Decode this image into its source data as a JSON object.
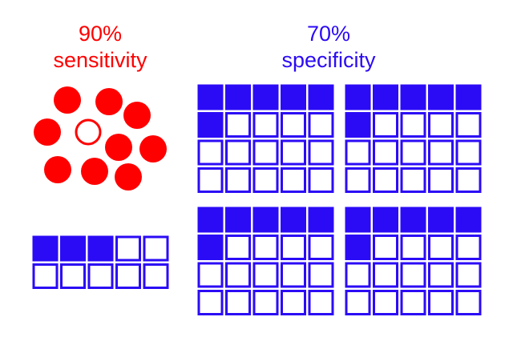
{
  "colors": {
    "sensitivity": "#ff0000",
    "specificity": "#2b0bf5",
    "background": "#ffffff"
  },
  "sensitivity": {
    "percent_label": "90%",
    "word": "sensitivity",
    "circles_total": 10,
    "circles_filled": 9,
    "squares_total": 10,
    "squares_filled": 3
  },
  "specificity": {
    "percent_label": "70%",
    "word": "specificity",
    "group_count": 4,
    "squares_per_group": 20,
    "filled_per_group": 6
  }
}
